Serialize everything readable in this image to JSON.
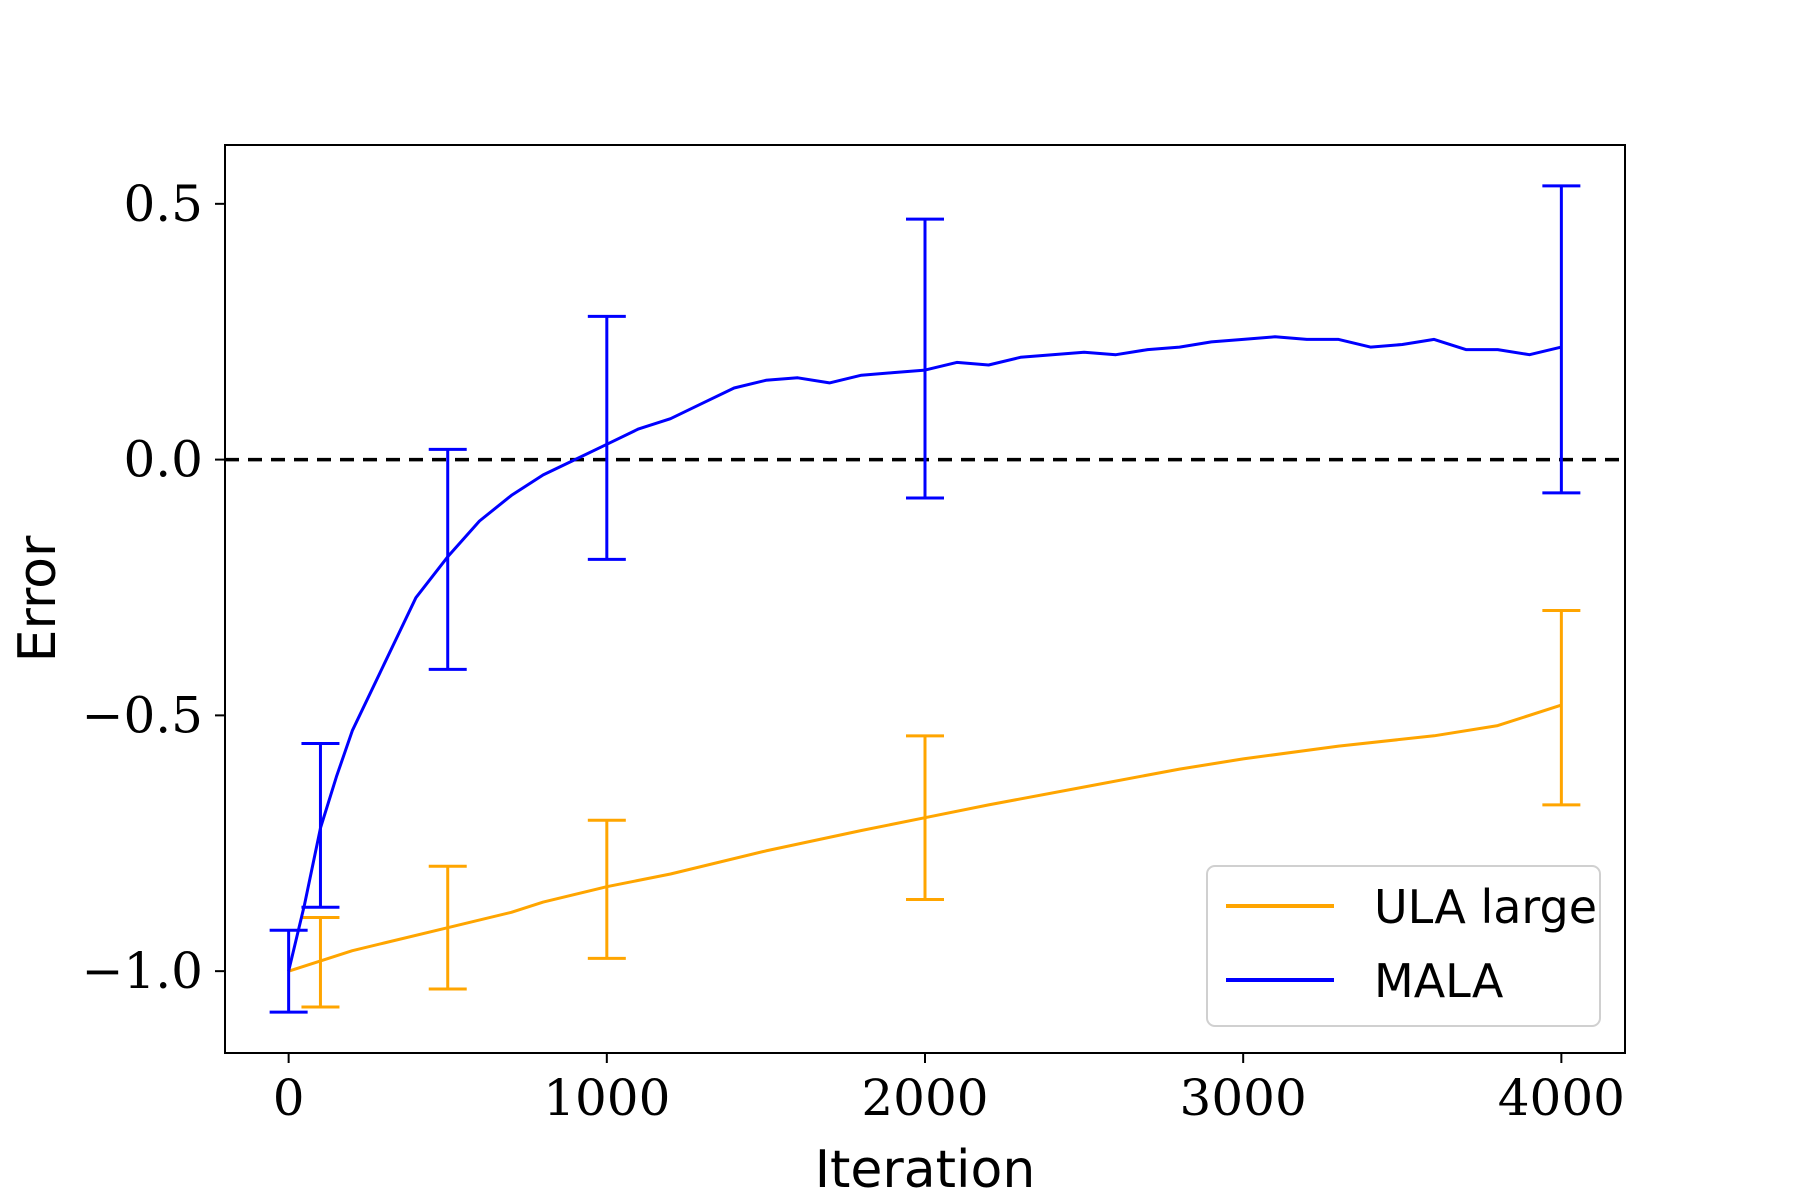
{
  "chart_data": {
    "type": "line",
    "xlabel": "Iteration",
    "ylabel": "Error",
    "xlim": [
      -200,
      4200
    ],
    "ylim": [
      -1.16,
      0.615
    ],
    "x_ticks": [
      0,
      1000,
      2000,
      3000,
      4000
    ],
    "x_tick_labels": [
      "0",
      "1000",
      "2000",
      "3000",
      "4000"
    ],
    "y_ticks": [
      -1.0,
      -0.5,
      0.0,
      0.5
    ],
    "y_tick_labels": [
      "−1.0",
      "−0.5",
      "0.0",
      "0.5"
    ],
    "reference_line": {
      "y": 0.0,
      "style": "dashed",
      "color": "#000000"
    },
    "legend_position": "lower-right",
    "series": [
      {
        "name": "ULA large",
        "color": "#FFA500",
        "x": [
          0,
          100,
          200,
          300,
          500,
          700,
          800,
          1000,
          1200,
          1500,
          1800,
          2000,
          2200,
          2500,
          2800,
          3000,
          3300,
          3600,
          3800,
          4000
        ],
        "y": [
          -1.0,
          -0.98,
          -0.96,
          -0.945,
          -0.915,
          -0.885,
          -0.865,
          -0.835,
          -0.81,
          -0.765,
          -0.725,
          -0.7,
          -0.675,
          -0.64,
          -0.605,
          -0.585,
          -0.56,
          -0.54,
          -0.52,
          -0.48
        ],
        "error_bars": [
          {
            "x": 100,
            "low": -1.07,
            "high": -0.895
          },
          {
            "x": 500,
            "low": -1.035,
            "high": -0.795
          },
          {
            "x": 1000,
            "low": -0.975,
            "high": -0.705
          },
          {
            "x": 2000,
            "low": -0.86,
            "high": -0.54
          },
          {
            "x": 4000,
            "low": -0.675,
            "high": -0.295
          }
        ]
      },
      {
        "name": "MALA",
        "color": "#0000FF",
        "x": [
          0,
          50,
          100,
          150,
          200,
          300,
          400,
          500,
          600,
          700,
          800,
          900,
          1000,
          1100,
          1200,
          1300,
          1400,
          1500,
          1600,
          1700,
          1800,
          1900,
          2000,
          2100,
          2200,
          2300,
          2400,
          2500,
          2600,
          2700,
          2800,
          2900,
          3000,
          3100,
          3200,
          3300,
          3400,
          3500,
          3600,
          3700,
          3800,
          3900,
          4000
        ],
        "y": [
          -1.0,
          -0.87,
          -0.72,
          -0.62,
          -0.53,
          -0.4,
          -0.27,
          -0.19,
          -0.12,
          -0.07,
          -0.03,
          0.0,
          0.03,
          0.06,
          0.08,
          0.11,
          0.14,
          0.155,
          0.16,
          0.15,
          0.165,
          0.17,
          0.175,
          0.19,
          0.185,
          0.2,
          0.205,
          0.21,
          0.205,
          0.215,
          0.22,
          0.23,
          0.235,
          0.24,
          0.235,
          0.235,
          0.22,
          0.225,
          0.235,
          0.215,
          0.215,
          0.205,
          0.22
        ],
        "error_bars": [
          {
            "x": 0,
            "low": -1.08,
            "high": -0.92
          },
          {
            "x": 100,
            "low": -0.875,
            "high": -0.555
          },
          {
            "x": 500,
            "low": -0.41,
            "high": 0.02
          },
          {
            "x": 1000,
            "low": -0.195,
            "high": 0.28
          },
          {
            "x": 2000,
            "low": -0.075,
            "high": 0.47
          },
          {
            "x": 4000,
            "low": -0.065,
            "high": 0.535
          }
        ]
      }
    ]
  }
}
